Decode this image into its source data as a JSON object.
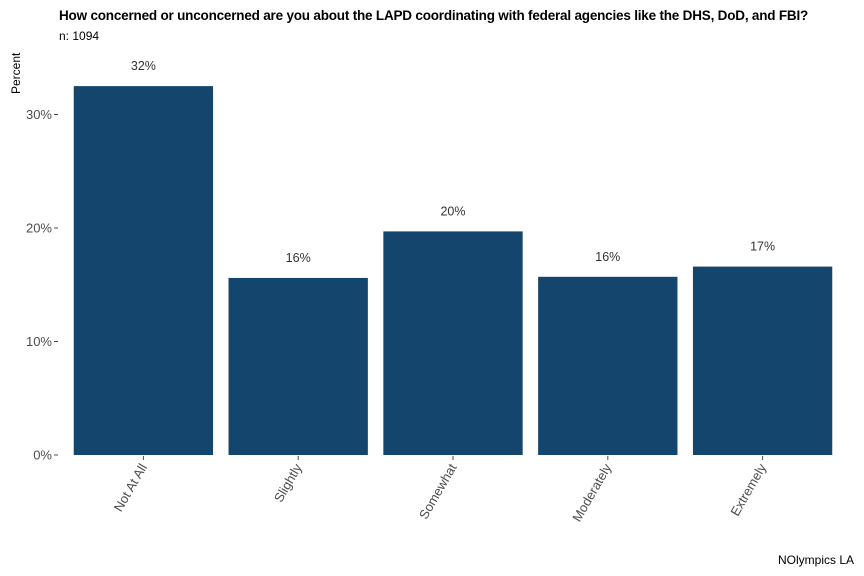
{
  "title": "How concerned or unconcerned are you about the LAPD coordinating with federal agencies like the DHS, DoD, and FBI?",
  "subtitle": "n: 1094",
  "caption": "NOlympics LA",
  "colors": {
    "bar": "#14456c",
    "tick": "#4d4d4d"
  },
  "chart_data": {
    "type": "bar",
    "categories": [
      "Not At All",
      "Slightly",
      "Somewhat",
      "Moderately",
      "Extremely"
    ],
    "values": [
      32.5,
      15.6,
      19.7,
      15.7,
      16.6
    ],
    "data_labels": [
      "32%",
      "16%",
      "20%",
      "16%",
      "17%"
    ],
    "ylabel": "Percent",
    "xlabel": "",
    "ylim": [
      0,
      35
    ],
    "yticks": [
      0,
      10,
      20,
      30
    ],
    "ytick_labels": [
      "0%",
      "10%",
      "20%",
      "30%"
    ],
    "grid": false,
    "legend": "none"
  }
}
